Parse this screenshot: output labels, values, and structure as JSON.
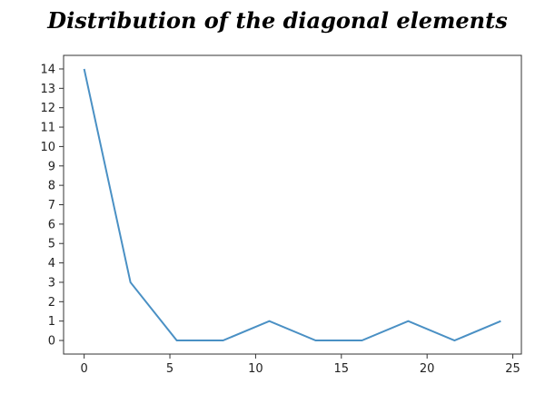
{
  "chart_data": {
    "type": "line",
    "title": "Distribution of the diagonal elements",
    "xlabel": "",
    "ylabel": "",
    "x": [
      0,
      2.7,
      5.4,
      8.1,
      10.8,
      13.5,
      16.2,
      18.9,
      21.6,
      24.3
    ],
    "series": [
      {
        "values": [
          14,
          3,
          0,
          0,
          1,
          0,
          0,
          1,
          0,
          1
        ]
      }
    ],
    "xlim": [
      -1.2,
      25.5
    ],
    "ylim": [
      -0.7,
      14.7
    ],
    "xticks": [
      0,
      5,
      10,
      15,
      20,
      25
    ],
    "yticks": [
      0,
      1,
      2,
      3,
      4,
      5,
      6,
      7,
      8,
      9,
      10,
      11,
      12,
      13,
      14
    ],
    "grid": false,
    "legend": "none",
    "colors": {
      "line": "#4a90c4",
      "axes": "#333333"
    }
  }
}
